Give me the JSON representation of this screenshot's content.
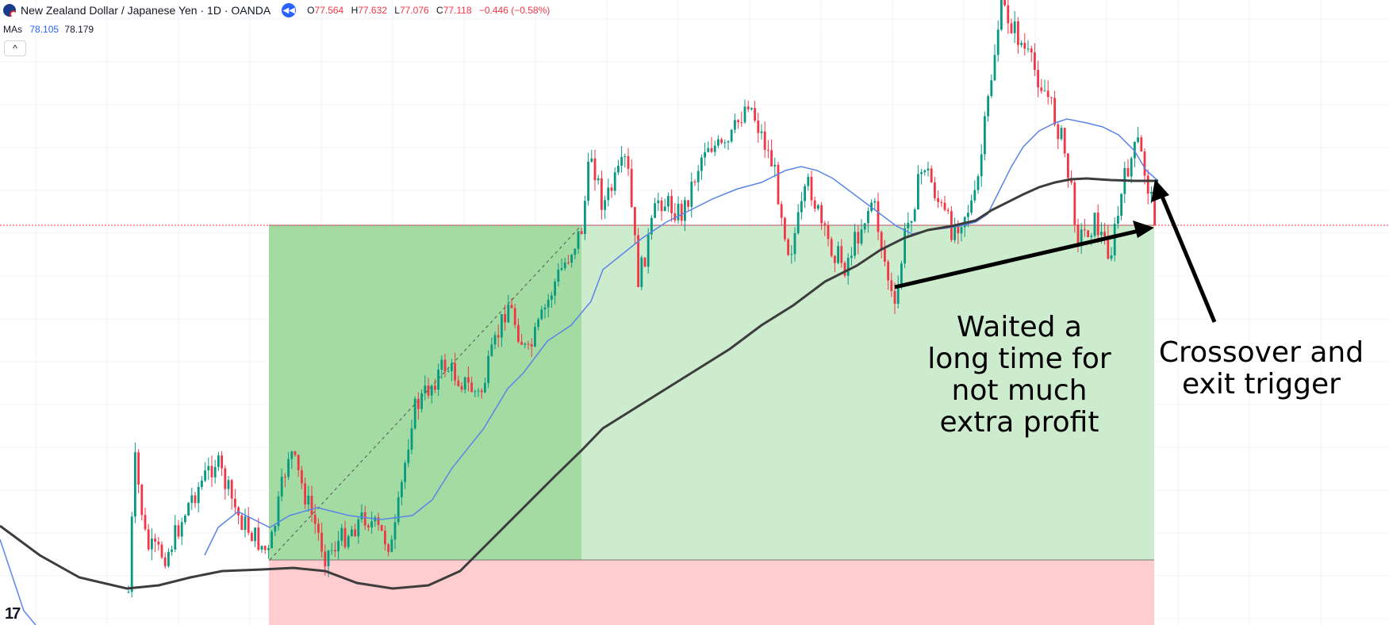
{
  "header": {
    "symbol": "New Zealand Dollar / Japanese Yen · 1D · OANDA",
    "replay_icon": "rewind-icon",
    "ohlc": {
      "o_label": "O",
      "o": "77.564",
      "h_label": "H",
      "h": "77.632",
      "l_label": "L",
      "l": "77.076",
      "c_label": "C",
      "c": "77.118",
      "change": "−0.446 (−0.58%)"
    }
  },
  "indicators": {
    "label": "MAs",
    "ma_fast": "78.105",
    "ma_slow": "78.179"
  },
  "collapse_label": "^",
  "logo": "17",
  "annotations": {
    "waited": [
      "Waited a",
      "long time for",
      "not much",
      "extra profit"
    ],
    "crossover": [
      "Crossover and",
      "exit trigger"
    ]
  },
  "colors": {
    "up": "#089981",
    "down": "#f23645",
    "ma_fast": "#5b84e8",
    "ma_slow": "#3d3d3d",
    "profit_dark": "#a3dba3",
    "profit_light": "#cdebcd",
    "loss": "#ffcccf",
    "price_line": "#f23645"
  },
  "chart_data": {
    "type": "candlestick",
    "series": [
      {
        "name": "MAs",
        "values": []
      }
    ],
    "grid": true,
    "ohlc_last": {
      "open": 77.564,
      "high": 77.632,
      "low": 77.076,
      "close": 77.118
    }
  }
}
